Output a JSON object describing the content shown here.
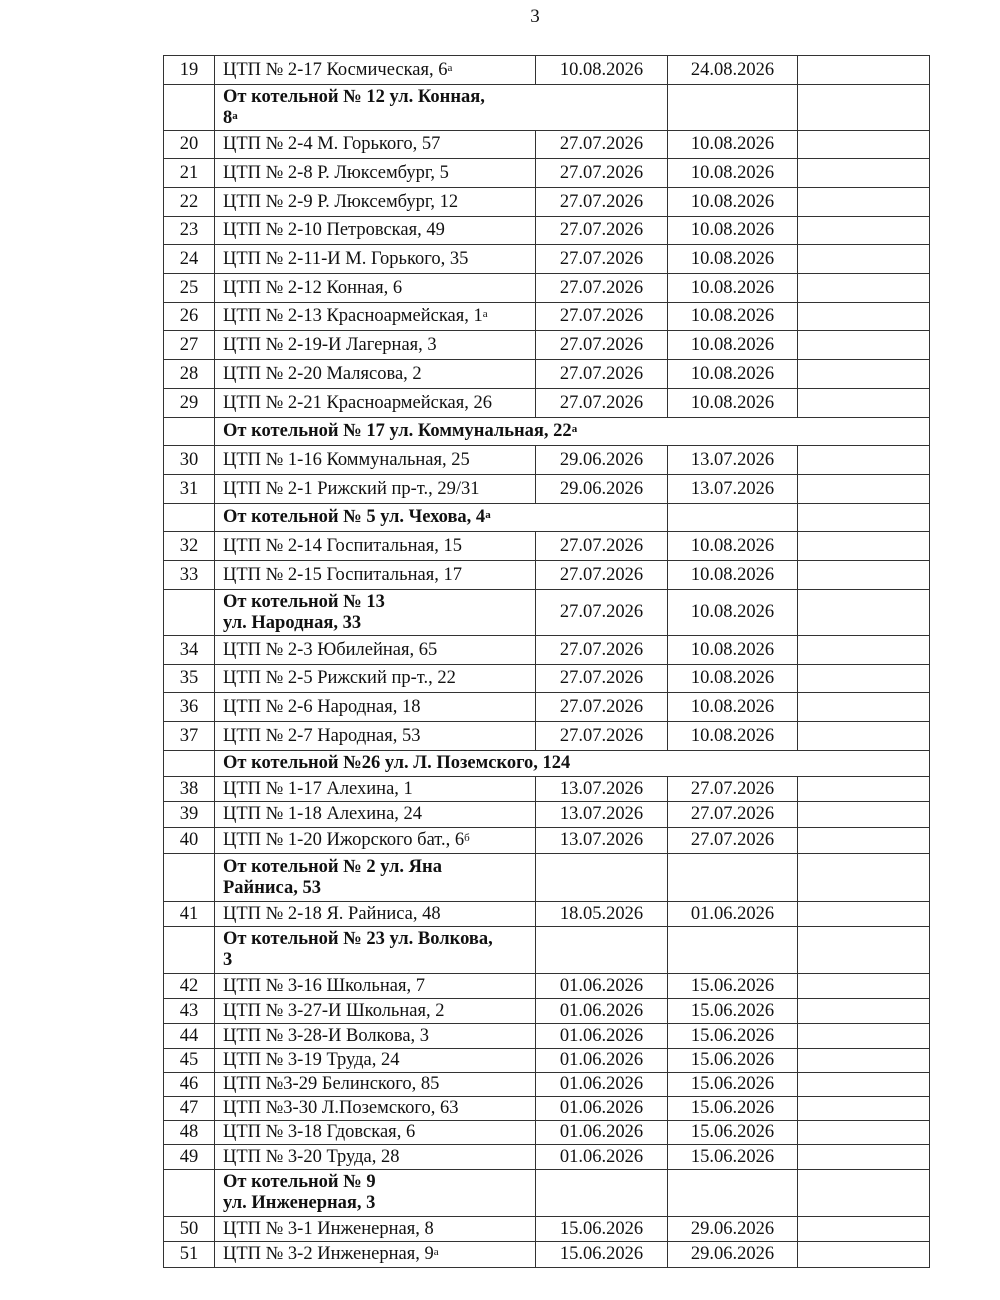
{
  "page_number": "3",
  "rows": [
    {
      "type": "item",
      "n": "19",
      "name": "ЦТП № 2-17 Космическая, 6",
      "sup": "а",
      "start": "10.08.2026",
      "end": "24.08.2026"
    },
    {
      "type": "header",
      "name": "От котельной № 12 ул. Конная, 8",
      "sup": "а",
      "span": 2
    },
    {
      "type": "item",
      "n": "20",
      "name": "ЦТП № 2-4 М. Горького, 57",
      "start": "27.07.2026",
      "end": "10.08.2026"
    },
    {
      "type": "item",
      "n": "21",
      "name": "ЦТП № 2-8 Р. Люксембург, 5",
      "start": "27.07.2026",
      "end": "10.08.2026"
    },
    {
      "type": "item",
      "n": "22",
      "name": "ЦТП № 2-9 Р. Люксембург, 12",
      "start": "27.07.2026",
      "end": "10.08.2026"
    },
    {
      "type": "item",
      "n": "23",
      "name": "ЦТП № 2-10 Петровская, 49",
      "start": "27.07.2026",
      "end": "10.08.2026"
    },
    {
      "type": "item",
      "n": "24",
      "name": "ЦТП № 2-11-И М. Горького, 35",
      "start": "27.07.2026",
      "end": "10.08.2026"
    },
    {
      "type": "item",
      "n": "25",
      "name": "ЦТП № 2-12 Конная, 6",
      "start": "27.07.2026",
      "end": "10.08.2026"
    },
    {
      "type": "item",
      "n": "26",
      "name": "ЦТП № 2-13 Красноармейская, 1",
      "sup": "а",
      "start": "27.07.2026",
      "end": "10.08.2026"
    },
    {
      "type": "item",
      "n": "27",
      "name": "ЦТП № 2-19-И Лагерная, 3",
      "start": "27.07.2026",
      "end": "10.08.2026"
    },
    {
      "type": "item",
      "n": "28",
      "name": "ЦТП № 2-20 Малясова, 2",
      "start": "27.07.2026",
      "end": "10.08.2026"
    },
    {
      "type": "item",
      "n": "29",
      "name": "ЦТП № 2-21 Красноармейская, 26",
      "start": "27.07.2026",
      "end": "10.08.2026"
    },
    {
      "type": "header",
      "name": "От котельной № 17 ул. Коммунальная, 22",
      "sup": "а",
      "span": 4
    },
    {
      "type": "item",
      "n": "30",
      "name": "ЦТП № 1-16 Коммунальная, 25",
      "start": "29.06.2026",
      "end": "13.07.2026"
    },
    {
      "type": "item",
      "n": "31",
      "name": "ЦТП № 2-1 Рижский пр-т., 29/31",
      "start": "29.06.2026",
      "end": "13.07.2026"
    },
    {
      "type": "header",
      "name": "От котельной № 5 ул. Чехова, 4",
      "sup": "а",
      "span": 2
    },
    {
      "type": "item",
      "n": "32",
      "name": "ЦТП № 2-14 Госпитальная, 15",
      "start": "27.07.2026",
      "end": "10.08.2026"
    },
    {
      "type": "item",
      "n": "33",
      "name": "ЦТП № 2-15 Госпитальная, 17",
      "start": "27.07.2026",
      "end": "10.08.2026"
    },
    {
      "type": "header",
      "name": "От котельной № 13 ул. Народная, 33",
      "span": 1,
      "start": "27.07.2026",
      "end": "10.08.2026"
    },
    {
      "type": "item",
      "n": "34",
      "name": "ЦТП № 2-3 Юбилейная, 65",
      "start": "27.07.2026",
      "end": "10.08.2026"
    },
    {
      "type": "item",
      "n": "35",
      "name": "ЦТП № 2-5 Рижский пр-т., 22",
      "start": "27.07.2026",
      "end": "10.08.2026"
    },
    {
      "type": "item",
      "n": "36",
      "name": "ЦТП № 2-6 Народная, 18",
      "start": "27.07.2026",
      "end": "10.08.2026"
    },
    {
      "type": "item",
      "n": "37",
      "name": "ЦТП № 2-7 Народная, 53",
      "start": "27.07.2026",
      "end": "10.08.2026"
    },
    {
      "type": "header",
      "name": "От котельной №26 ул. Л. Поземского, 124",
      "span": 4
    },
    {
      "type": "item",
      "n": "38",
      "name": "ЦТП № 1-17 Алехина, 1",
      "start": "13.07.2026",
      "end": "27.07.2026"
    },
    {
      "type": "item",
      "n": "39",
      "name": "ЦТП № 1-18 Алехина, 24",
      "start": "13.07.2026",
      "end": "27.07.2026"
    },
    {
      "type": "item",
      "n": "40",
      "name": "ЦТП № 1-20 Ижорского бат., 6",
      "sup": "б",
      "start": "13.07.2026",
      "end": "27.07.2026"
    },
    {
      "type": "header",
      "name": "От котельной № 2 ул. Яна Райниса, 53",
      "span": 1
    },
    {
      "type": "item",
      "n": "41",
      "name": "ЦТП № 2-18 Я. Райниса, 48",
      "start": "18.05.2026",
      "end": "01.06.2026"
    },
    {
      "type": "header",
      "name": "От котельной № 23 ул. Волкова, 3",
      "span": 1
    },
    {
      "type": "item",
      "n": "42",
      "name": "ЦТП № 3-16 Школьная, 7",
      "start": "01.06.2026",
      "end": "15.06.2026"
    },
    {
      "type": "item",
      "n": "43",
      "name": "ЦТП № 3-27-И Школьная, 2",
      "start": "01.06.2026",
      "end": "15.06.2026"
    },
    {
      "type": "item",
      "n": "44",
      "name": "ЦТП № 3-28-И Волкова, 3",
      "start": "01.06.2026",
      "end": "15.06.2026"
    },
    {
      "type": "item",
      "n": "45",
      "name": "ЦТП № 3-19 Труда, 24",
      "start": "01.06.2026",
      "end": "15.06.2026"
    },
    {
      "type": "item",
      "n": "46",
      "name": "ЦТП №3-29 Белинского, 85",
      "start": "01.06.2026",
      "end": "15.06.2026"
    },
    {
      "type": "item",
      "n": "47",
      "name": "ЦТП №3-30 Л.Поземского, 63",
      "start": "01.06.2026",
      "end": "15.06.2026"
    },
    {
      "type": "item",
      "n": "48",
      "name": "ЦТП № 3-18 Гдовская, 6",
      "start": "01.06.2026",
      "end": "15.06.2026"
    },
    {
      "type": "item",
      "n": "49",
      "name": "ЦТП № 3-20 Труда, 28",
      "start": "01.06.2026",
      "end": "15.06.2026"
    },
    {
      "type": "header",
      "name": "От котельной № 9 ул. Инженерная, 3",
      "span": 1
    },
    {
      "type": "item",
      "n": "50",
      "name": "ЦТП № 3-1 Инженерная, 8",
      "start": "15.06.2026",
      "end": "29.06.2026"
    },
    {
      "type": "item",
      "n": "51",
      "name": "ЦТП № 3-2 Инженерная, 9",
      "sup": "а",
      "start": "15.06.2026",
      "end": "29.06.2026"
    }
  ]
}
